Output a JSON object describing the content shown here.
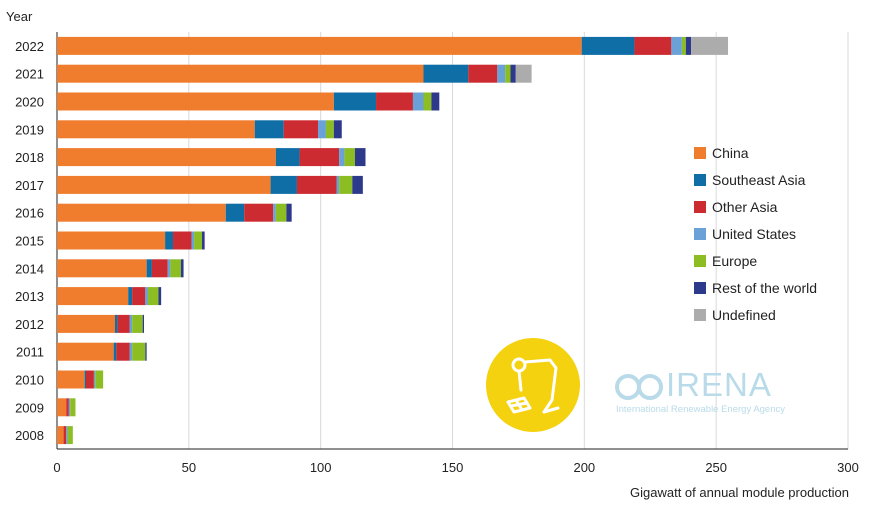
{
  "chart_data": {
    "type": "bar",
    "orientation": "horizontal",
    "stacked": true,
    "ylabel": "Year",
    "xlabel": "Gigawatt of annual module production",
    "xlim": [
      0,
      300
    ],
    "xticks": [
      0,
      50,
      100,
      150,
      200,
      250,
      300
    ],
    "grid": "vertical",
    "legend_position": "right",
    "categories": [
      "2022",
      "2021",
      "2020",
      "2019",
      "2018",
      "2017",
      "2016",
      "2015",
      "2014",
      "2013",
      "2012",
      "2011",
      "2010",
      "2009",
      "2008"
    ],
    "series": [
      {
        "name": "China",
        "color": "#f07d2e",
        "values": [
          199,
          139,
          105,
          75,
          83,
          81,
          64,
          41,
          34,
          27,
          22,
          21.5,
          10.5,
          3.5,
          2.5
        ]
      },
      {
        "name": "Southeast Asia",
        "color": "#0f6ea5",
        "values": [
          20,
          17,
          16,
          11,
          9,
          10,
          7,
          3,
          2,
          1.5,
          1,
          1,
          0.5,
          0,
          0
        ]
      },
      {
        "name": "Other Asia",
        "color": "#cc2b31",
        "values": [
          14,
          11,
          14,
          13,
          15,
          15,
          11,
          7,
          6,
          5,
          4.5,
          5,
          3,
          1,
          1
        ]
      },
      {
        "name": "United States",
        "color": "#6aa2d8",
        "values": [
          4,
          3,
          4,
          3,
          2,
          1,
          1,
          1,
          1,
          1,
          1,
          1,
          0.5,
          0.5,
          0.5
        ]
      },
      {
        "name": "Europe",
        "color": "#8cbd22",
        "values": [
          1.5,
          2,
          3,
          3,
          4,
          5,
          4,
          3,
          4,
          4,
          4,
          5,
          3,
          2,
          2
        ]
      },
      {
        "name": "Rest of the world",
        "color": "#2d3a8c",
        "values": [
          2,
          2,
          3,
          3,
          4,
          4,
          2,
          1,
          1,
          1,
          0.5,
          0.5,
          0,
          0,
          0
        ]
      },
      {
        "name": "Undefined",
        "color": "#acacac",
        "values": [
          14,
          6,
          0,
          0,
          0,
          0,
          0,
          0,
          0,
          0,
          0,
          0,
          0,
          0,
          0
        ]
      }
    ]
  },
  "branding": {
    "name": "IRENA",
    "subtitle": "International Renewable Energy Agency",
    "colors": {
      "badge": "#f5d20f",
      "text": "#b9dbe9"
    }
  }
}
